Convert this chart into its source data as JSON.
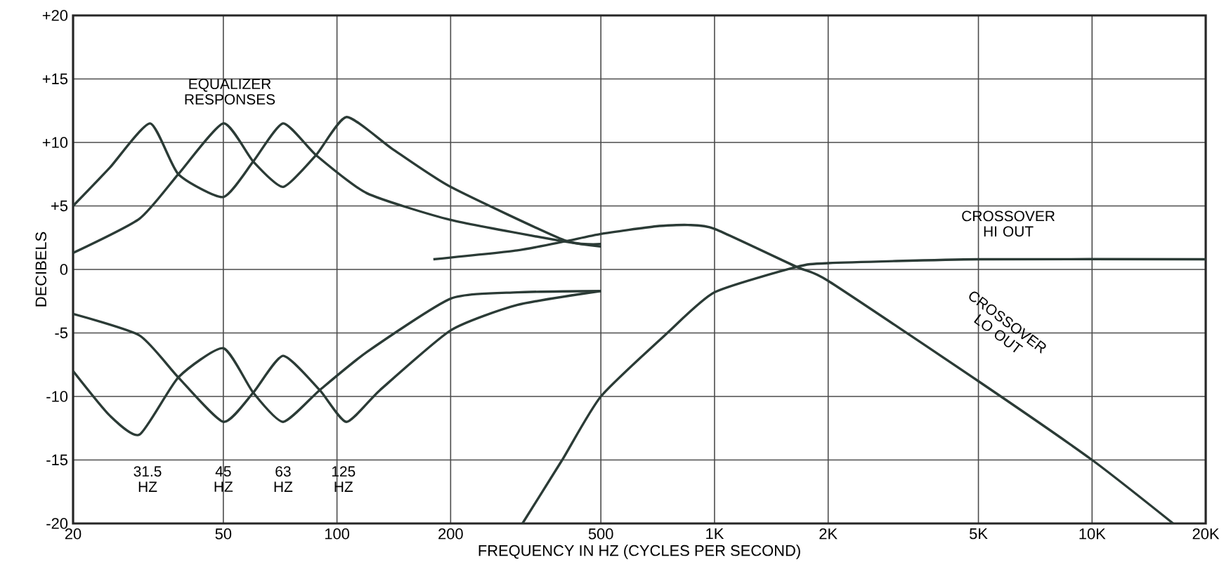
{
  "chart_data": {
    "type": "line",
    "xlabel": "FREQUENCY IN HZ (CYCLES PER SECOND)",
    "ylabel": "DECIBELS",
    "log": "x",
    "grid": true,
    "marker": "none",
    "line_style": "solid",
    "xlim": [
      20,
      20000
    ],
    "ylim": [
      -20,
      20
    ],
    "xticks": [
      20,
      50,
      100,
      200,
      500,
      {
        "value": 1000,
        "label": "1K"
      },
      {
        "value": 2000,
        "label": "2K"
      },
      {
        "value": 5000,
        "label": "5K"
      },
      {
        "value": 10000,
        "label": "10K"
      },
      {
        "value": 20000,
        "label": "20K"
      }
    ],
    "yticks": [
      {
        "value": -20,
        "label": "-20"
      },
      -15,
      -10,
      -5,
      0,
      {
        "value": 5,
        "label": "+5"
      },
      {
        "value": 10,
        "label": "+10"
      },
      {
        "value": 15,
        "label": "+15"
      },
      {
        "value": 20,
        "label": "+20"
      }
    ],
    "series": [
      {
        "color": "#2b3b36",
        "x": [
          20,
          25,
          32,
          38,
          50,
          60,
          72,
          88,
          120,
          200,
          400,
          500
        ],
        "values": [
          5,
          8,
          11.5,
          7.5,
          5.7,
          8.5,
          11.5,
          9,
          6,
          3.9,
          2.2,
          1.8
        ]
      },
      {
        "color": "#2b3b36",
        "x": [
          20,
          30,
          38,
          50,
          60,
          72,
          88,
          106,
          140,
          200,
          400,
          500
        ],
        "values": [
          1.3,
          4,
          7.5,
          11.5,
          8.5,
          6.5,
          9,
          12,
          9.5,
          6.5,
          2.3,
          2
        ]
      },
      {
        "color": "#2b3b36",
        "x": [
          20,
          30,
          38,
          50,
          60,
          72,
          90,
          106,
          130,
          200,
          300,
          500
        ],
        "values": [
          -3.5,
          -5.2,
          -8.5,
          -12,
          -9.7,
          -6.8,
          -9.5,
          -12,
          -9.5,
          -4.8,
          -2.8,
          -1.7
        ]
      },
      {
        "color": "#2b3b36",
        "x": [
          20,
          25,
          30,
          38,
          50,
          60,
          72,
          90,
          120,
          200,
          300,
          500
        ],
        "values": [
          -8,
          -11.5,
          -13,
          -8.5,
          -6.2,
          -9.7,
          -12,
          -9.5,
          -6.5,
          -2.3,
          -1.8,
          -1.7
        ]
      },
      {
        "name": "CROSSOVER HI OUT",
        "color": "#2b3b36",
        "x": [
          310,
          395,
          500,
          750,
          1000,
          1650,
          2000,
          5000,
          20000
        ],
        "values": [
          -20,
          -15,
          -10,
          -5,
          -1.8,
          0.2,
          0.5,
          0.8,
          0.8
        ]
      },
      {
        "name": "CROSSOVER LO OUT",
        "color": "#2b3b36",
        "x": [
          180,
          300,
          400,
          500,
          700,
          850,
          1000,
          1650,
          2000,
          5000,
          10000,
          16400
        ],
        "values": [
          0.8,
          1.5,
          2.2,
          2.8,
          3.4,
          3.5,
          3.2,
          0.2,
          -0.9,
          -8.8,
          -15,
          -20
        ]
      }
    ],
    "annotations": [
      "EQUALIZER RESPONSES",
      "31.5 HZ",
      "45 HZ",
      "63 HZ",
      "125 HZ"
    ]
  }
}
